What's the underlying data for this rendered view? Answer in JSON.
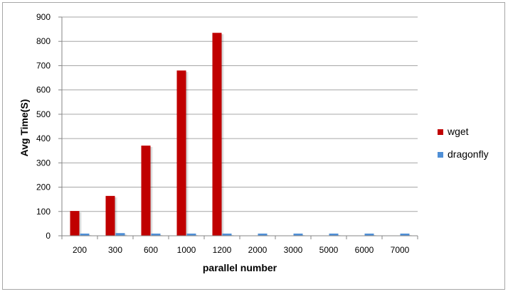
{
  "chart_data": {
    "type": "bar",
    "title": "",
    "xlabel": "parallel number",
    "ylabel": "Avg Time(S)",
    "categories": [
      "200",
      "300",
      "600",
      "1000",
      "1200",
      "2000",
      "3000",
      "5000",
      "6000",
      "7000"
    ],
    "series": [
      {
        "name": "wget",
        "color": "#c00000",
        "values": [
          102,
          164,
          371,
          680,
          835,
          null,
          null,
          null,
          null,
          null
        ]
      },
      {
        "name": "dragonfly",
        "color": "#4f8fd6",
        "values": [
          9,
          11,
          9,
          9,
          9,
          9,
          9,
          9,
          9,
          9
        ]
      }
    ],
    "ylim": [
      0,
      900
    ],
    "yticks": [
      0,
      100,
      200,
      300,
      400,
      500,
      600,
      700,
      800,
      900
    ],
    "grid": true,
    "legend_position": "right",
    "style": "3d-shadow bars"
  }
}
